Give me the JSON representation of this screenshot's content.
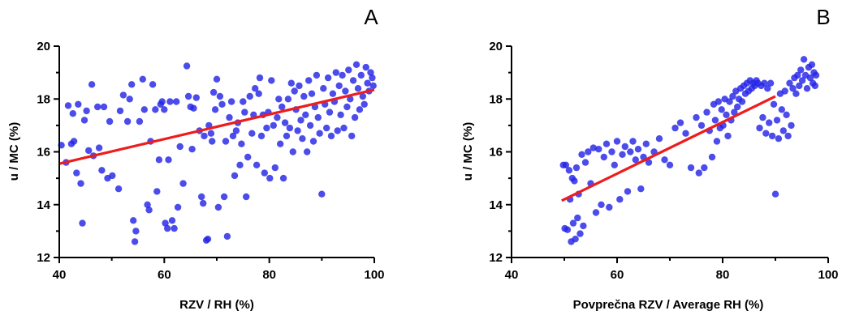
{
  "chart_data": [
    {
      "type": "scatter",
      "panel_label": "A",
      "title": "",
      "xlabel": "RZV /  RH (%)",
      "ylabel": "u / MC (%)",
      "xlim": [
        40,
        100
      ],
      "ylim": [
        12,
        20
      ],
      "xticks": [
        40,
        60,
        80,
        100
      ],
      "yticks": [
        12,
        14,
        16,
        18,
        20
      ],
      "colors": {
        "points": "#2424e6",
        "fit": "#ee1c1c"
      },
      "grid": false,
      "fit_line": {
        "x": [
          40,
          100
        ],
        "y": [
          15.55,
          18.35
        ]
      },
      "points": [
        [
          40.4,
          16.25
        ],
        [
          41.3,
          15.6
        ],
        [
          41.7,
          17.75
        ],
        [
          42.3,
          16.3
        ],
        [
          42.6,
          17.45
        ],
        [
          42.8,
          16.4
        ],
        [
          43.3,
          15.2
        ],
        [
          43.6,
          17.8
        ],
        [
          44.1,
          14.8
        ],
        [
          44.4,
          13.3
        ],
        [
          44.8,
          17.2
        ],
        [
          45.2,
          17.55
        ],
        [
          45.6,
          16.05
        ],
        [
          46.2,
          18.55
        ],
        [
          46.5,
          15.85
        ],
        [
          47.3,
          17.7
        ],
        [
          47.6,
          16.15
        ],
        [
          48.1,
          15.3
        ],
        [
          48.5,
          17.7
        ],
        [
          49.2,
          15.0
        ],
        [
          49.6,
          17.15
        ],
        [
          50.1,
          15.1
        ],
        [
          51.3,
          14.6
        ],
        [
          51.6,
          17.55
        ],
        [
          52.2,
          18.15
        ],
        [
          53.0,
          17.15
        ],
        [
          53.4,
          18.0
        ],
        [
          53.8,
          18.55
        ],
        [
          54.1,
          13.4
        ],
        [
          54.4,
          12.6
        ],
        [
          54.6,
          13.0
        ],
        [
          55.3,
          17.15
        ],
        [
          55.9,
          18.75
        ],
        [
          56.2,
          17.6
        ],
        [
          56.8,
          14.0
        ],
        [
          57.1,
          13.8
        ],
        [
          57.4,
          16.4
        ],
        [
          57.8,
          18.55
        ],
        [
          58.3,
          17.6
        ],
        [
          58.6,
          14.5
        ],
        [
          59.0,
          15.7
        ],
        [
          59.3,
          17.8
        ],
        [
          59.6,
          17.9
        ],
        [
          60.0,
          17.6
        ],
        [
          60.2,
          13.3
        ],
        [
          60.6,
          13.1
        ],
        [
          60.8,
          15.7
        ],
        [
          61.1,
          17.9
        ],
        [
          61.5,
          13.4
        ],
        [
          61.9,
          13.1
        ],
        [
          62.3,
          17.9
        ],
        [
          62.6,
          13.9
        ],
        [
          63.0,
          16.2
        ],
        [
          63.6,
          14.8
        ],
        [
          64.3,
          19.25
        ],
        [
          64.6,
          18.1
        ],
        [
          65.0,
          17.7
        ],
        [
          65.3,
          16.1
        ],
        [
          65.6,
          17.65
        ],
        [
          66.1,
          18.05
        ],
        [
          66.7,
          16.8
        ],
        [
          67.1,
          14.3
        ],
        [
          67.4,
          14.05
        ],
        [
          67.6,
          16.6
        ],
        [
          68.0,
          12.65
        ],
        [
          68.3,
          12.7
        ],
        [
          68.5,
          17.0
        ],
        [
          68.9,
          16.7
        ],
        [
          69.1,
          16.4
        ],
        [
          69.4,
          18.25
        ],
        [
          69.7,
          17.6
        ],
        [
          70.0,
          18.75
        ],
        [
          70.3,
          13.9
        ],
        [
          70.6,
          18.1
        ],
        [
          71.0,
          17.8
        ],
        [
          71.4,
          14.3
        ],
        [
          71.7,
          16.4
        ],
        [
          72.0,
          12.8
        ],
        [
          72.4,
          17.3
        ],
        [
          72.8,
          17.9
        ],
        [
          73.1,
          16.6
        ],
        [
          73.4,
          15.1
        ],
        [
          73.7,
          16.8
        ],
        [
          74.0,
          17.1
        ],
        [
          74.4,
          15.5
        ],
        [
          74.7,
          16.3
        ],
        [
          75.0,
          17.9
        ],
        [
          75.3,
          17.5
        ],
        [
          75.6,
          14.3
        ],
        [
          75.9,
          15.8
        ],
        [
          76.3,
          18.1
        ],
        [
          76.7,
          16.7
        ],
        [
          77.0,
          17.4
        ],
        [
          77.3,
          18.4
        ],
        [
          77.6,
          15.5
        ],
        [
          78.0,
          18.2
        ],
        [
          78.2,
          18.8
        ],
        [
          78.5,
          16.6
        ],
        [
          78.8,
          17.4
        ],
        [
          79.1,
          15.2
        ],
        [
          79.5,
          16.9
        ],
        [
          79.8,
          17.5
        ],
        [
          80.1,
          15.0
        ],
        [
          80.4,
          18.7
        ],
        [
          80.8,
          17.0
        ],
        [
          81.1,
          15.4
        ],
        [
          81.5,
          17.3
        ],
        [
          81.8,
          18.0
        ],
        [
          82.1,
          16.3
        ],
        [
          82.4,
          17.7
        ],
        [
          82.7,
          15.0
        ],
        [
          83.0,
          17.1
        ],
        [
          83.3,
          16.6
        ],
        [
          83.6,
          18.0
        ],
        [
          83.9,
          16.9
        ],
        [
          84.2,
          18.6
        ],
        [
          84.5,
          16.0
        ],
        [
          84.8,
          18.3
        ],
        [
          85.1,
          17.6
        ],
        [
          85.4,
          16.8
        ],
        [
          85.7,
          18.5
        ],
        [
          86.0,
          17.2
        ],
        [
          86.3,
          16.5
        ],
        [
          86.6,
          18.1
        ],
        [
          86.9,
          17.4
        ],
        [
          87.2,
          16.0
        ],
        [
          87.5,
          18.7
        ],
        [
          87.8,
          17.0
        ],
        [
          88.1,
          18.2
        ],
        [
          88.4,
          16.4
        ],
        [
          88.7,
          17.7
        ],
        [
          89.0,
          18.9
        ],
        [
          89.3,
          17.3
        ],
        [
          89.6,
          16.7
        ],
        [
          90.0,
          14.4
        ],
        [
          90.3,
          18.4
        ],
        [
          90.6,
          17.8
        ],
        [
          90.9,
          16.9
        ],
        [
          91.2,
          18.8
        ],
        [
          91.5,
          17.5
        ],
        [
          91.8,
          16.6
        ],
        [
          92.1,
          18.2
        ],
        [
          92.4,
          17.9
        ],
        [
          92.7,
          19.0
        ],
        [
          93.0,
          16.8
        ],
        [
          93.3,
          18.5
        ],
        [
          93.6,
          17.4
        ],
        [
          93.9,
          18.9
        ],
        [
          94.2,
          16.9
        ],
        [
          94.5,
          18.3
        ],
        [
          94.8,
          17.7
        ],
        [
          95.1,
          19.1
        ],
        [
          95.4,
          18.0
        ],
        [
          95.7,
          16.6
        ],
        [
          96.0,
          18.7
        ],
        [
          96.3,
          17.3
        ],
        [
          96.6,
          19.3
        ],
        [
          96.9,
          18.4
        ],
        [
          97.2,
          17.6
        ],
        [
          97.5,
          18.9
        ],
        [
          97.8,
          18.1
        ],
        [
          98.1,
          17.8
        ],
        [
          98.4,
          19.2
        ],
        [
          98.7,
          18.6
        ],
        [
          99.0,
          18.3
        ],
        [
          99.3,
          19.0
        ],
        [
          99.6,
          18.8
        ],
        [
          99.8,
          18.5
        ]
      ]
    },
    {
      "type": "scatter",
      "panel_label": "B",
      "title": "",
      "xlabel": "Povprečna RZV /  Average RH (%)",
      "ylabel": "u / MC (%)",
      "xlim": [
        40,
        100
      ],
      "ylim": [
        12,
        20
      ],
      "xticks": [
        40,
        60,
        80,
        100
      ],
      "yticks": [
        12,
        14,
        16,
        18,
        20
      ],
      "colors": {
        "points": "#2424e6",
        "fit": "#ee1c1c"
      },
      "grid": false,
      "fit_line": {
        "x": [
          49.5,
          90
        ],
        "y": [
          14.15,
          18.1
        ]
      },
      "points": [
        [
          49.8,
          15.5
        ],
        [
          50.1,
          13.1
        ],
        [
          50.3,
          15.5
        ],
        [
          50.6,
          13.05
        ],
        [
          50.9,
          15.3
        ],
        [
          51.1,
          14.2
        ],
        [
          51.3,
          12.6
        ],
        [
          51.5,
          15.0
        ],
        [
          51.7,
          13.3
        ],
        [
          51.9,
          14.9
        ],
        [
          52.1,
          12.7
        ],
        [
          52.3,
          15.4
        ],
        [
          52.5,
          13.5
        ],
        [
          52.7,
          14.4
        ],
        [
          53.0,
          12.9
        ],
        [
          53.3,
          15.9
        ],
        [
          53.6,
          13.2
        ],
        [
          54.0,
          15.6
        ],
        [
          54.5,
          16.0
        ],
        [
          55.0,
          14.8
        ],
        [
          55.5,
          16.15
        ],
        [
          56.0,
          13.7
        ],
        [
          56.5,
          16.1
        ],
        [
          57.0,
          14.0
        ],
        [
          57.5,
          15.8
        ],
        [
          58.0,
          16.3
        ],
        [
          58.5,
          13.9
        ],
        [
          59.0,
          16.0
        ],
        [
          59.5,
          15.5
        ],
        [
          60.0,
          16.4
        ],
        [
          60.5,
          14.2
        ],
        [
          61.0,
          15.9
        ],
        [
          61.5,
          16.2
        ],
        [
          62.0,
          14.5
        ],
        [
          62.5,
          16.0
        ],
        [
          63.0,
          16.4
        ],
        [
          63.5,
          15.7
        ],
        [
          64.0,
          16.1
        ],
        [
          64.5,
          14.6
        ],
        [
          65.0,
          15.8
        ],
        [
          65.5,
          16.3
        ],
        [
          66.0,
          15.6
        ],
        [
          67.0,
          16.0
        ],
        [
          68.0,
          16.5
        ],
        [
          69.0,
          15.7
        ],
        [
          70.0,
          15.5
        ],
        [
          71.0,
          16.9
        ],
        [
          72.0,
          17.1
        ],
        [
          73.0,
          16.7
        ],
        [
          74.0,
          15.4
        ],
        [
          75.0,
          17.3
        ],
        [
          75.5,
          15.2
        ],
        [
          76.0,
          17.0
        ],
        [
          76.5,
          15.4
        ],
        [
          77.0,
          17.5
        ],
        [
          77.5,
          16.8
        ],
        [
          78.0,
          15.8
        ],
        [
          78.3,
          17.8
        ],
        [
          78.6,
          17.2
        ],
        [
          78.9,
          16.4
        ],
        [
          79.2,
          17.9
        ],
        [
          79.5,
          16.9
        ],
        [
          79.8,
          17.6
        ],
        [
          80.1,
          17.0
        ],
        [
          80.4,
          18.0
        ],
        [
          80.7,
          17.4
        ],
        [
          81.0,
          16.6
        ],
        [
          81.3,
          17.9
        ],
        [
          81.6,
          17.2
        ],
        [
          81.9,
          18.1
        ],
        [
          82.2,
          17.5
        ],
        [
          82.5,
          18.3
        ],
        [
          82.8,
          17.7
        ],
        [
          83.1,
          18.0
        ],
        [
          83.4,
          18.4
        ],
        [
          83.7,
          17.9
        ],
        [
          84.0,
          18.5
        ],
        [
          84.3,
          18.2
        ],
        [
          84.6,
          18.6
        ],
        [
          84.9,
          18.3
        ],
        [
          85.2,
          18.7
        ],
        [
          85.5,
          18.4
        ],
        [
          85.8,
          18.6
        ],
        [
          86.1,
          18.5
        ],
        [
          86.4,
          18.7
        ],
        [
          86.7,
          18.6
        ],
        [
          87.0,
          16.9
        ],
        [
          87.3,
          18.5
        ],
        [
          87.6,
          17.3
        ],
        [
          87.9,
          18.6
        ],
        [
          88.2,
          16.7
        ],
        [
          88.5,
          18.4
        ],
        [
          88.8,
          17.1
        ],
        [
          89.1,
          18.6
        ],
        [
          89.4,
          16.6
        ],
        [
          89.7,
          17.8
        ],
        [
          90.0,
          14.4
        ],
        [
          90.3,
          17.2
        ],
        [
          90.6,
          16.5
        ],
        [
          90.9,
          18.2
        ],
        [
          91.2,
          17.6
        ],
        [
          91.5,
          16.8
        ],
        [
          91.8,
          18.3
        ],
        [
          92.1,
          17.4
        ],
        [
          92.4,
          16.6
        ],
        [
          92.7,
          18.6
        ],
        [
          93.0,
          17.0
        ],
        [
          93.3,
          18.4
        ],
        [
          93.6,
          18.8
        ],
        [
          93.9,
          18.2
        ],
        [
          94.2,
          18.9
        ],
        [
          94.5,
          18.5
        ],
        [
          94.8,
          19.1
        ],
        [
          95.1,
          18.7
        ],
        [
          95.4,
          19.5
        ],
        [
          95.7,
          18.9
        ],
        [
          96.0,
          18.4
        ],
        [
          96.3,
          19.2
        ],
        [
          96.6,
          18.8
        ],
        [
          96.9,
          19.3
        ],
        [
          97.1,
          18.6
        ],
        [
          97.3,
          19.0
        ],
        [
          97.5,
          18.5
        ],
        [
          97.7,
          18.9
        ]
      ]
    }
  ]
}
